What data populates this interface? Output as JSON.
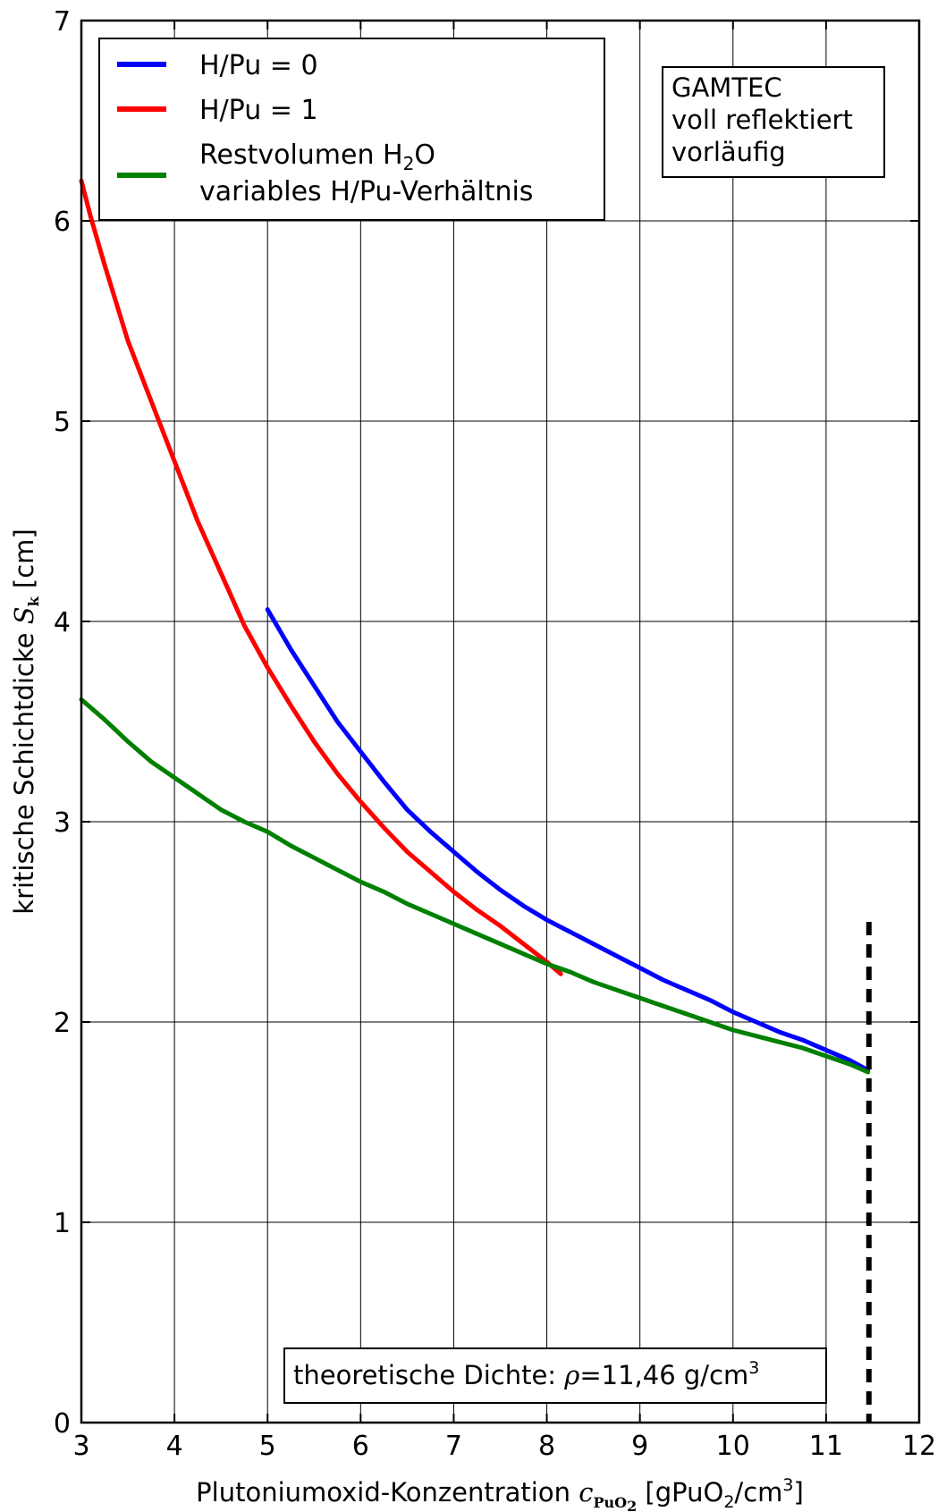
{
  "chart_data": {
    "type": "line",
    "xlim": [
      3,
      12
    ],
    "ylim": [
      0,
      7
    ],
    "x_ticks": [
      "3",
      "4",
      "5",
      "6",
      "7",
      "8",
      "9",
      "10",
      "11",
      "12"
    ],
    "y_ticks": [
      "0",
      "1",
      "2",
      "3",
      "4",
      "5",
      "6",
      "7"
    ],
    "grid": true,
    "xlabel": {
      "prefix": "Plutoniumoxid-Konzentration ",
      "symbol": "c",
      "symbol_sub": "PuO",
      "symbol_sub2": "2",
      "unit_open": " [gPuO",
      "unit_sub": "2",
      "unit_mid": "/cm",
      "unit_sup": "3",
      "unit_close": "]"
    },
    "ylabel": {
      "prefix": "kritische Schichtdicke ",
      "symbol": "S",
      "symbol_sub": "k",
      "unit": " [cm]"
    },
    "legend_position": "top-left",
    "series": [
      {
        "name": "H/Pu = 0",
        "color": "#0000ff",
        "x": [
          5.0,
          5.25,
          5.5,
          5.75,
          6.0,
          6.25,
          6.5,
          6.75,
          7.0,
          7.25,
          7.5,
          7.75,
          8.0,
          8.25,
          8.5,
          8.75,
          9.0,
          9.25,
          9.5,
          9.75,
          10.0,
          10.25,
          10.5,
          10.75,
          11.0,
          11.25,
          11.45
        ],
        "y": [
          4.06,
          3.86,
          3.68,
          3.5,
          3.35,
          3.2,
          3.06,
          2.95,
          2.85,
          2.75,
          2.66,
          2.58,
          2.51,
          2.45,
          2.39,
          2.33,
          2.27,
          2.21,
          2.16,
          2.11,
          2.05,
          2.0,
          1.95,
          1.91,
          1.86,
          1.81,
          1.76
        ]
      },
      {
        "name": "H/Pu = 1",
        "color": "#ff0000",
        "x": [
          3.0,
          3.1,
          3.25,
          3.5,
          3.75,
          4.0,
          4.25,
          4.5,
          4.75,
          5.0,
          5.25,
          5.5,
          5.75,
          6.0,
          6.25,
          6.5,
          6.75,
          7.0,
          7.25,
          7.5,
          7.75,
          8.0,
          8.15
        ],
        "y": [
          6.2,
          6.02,
          5.78,
          5.4,
          5.1,
          4.8,
          4.5,
          4.24,
          3.98,
          3.77,
          3.58,
          3.4,
          3.24,
          3.1,
          2.97,
          2.85,
          2.75,
          2.65,
          2.56,
          2.48,
          2.39,
          2.3,
          2.24
        ]
      },
      {
        "name_line1": "Restvolumen H",
        "name_sub": "2",
        "name_tail": "O",
        "name_line2": "variables H/Pu-Verhältnis",
        "color": "#008000",
        "x": [
          3.0,
          3.25,
          3.5,
          3.75,
          4.0,
          4.25,
          4.5,
          4.75,
          5.0,
          5.25,
          5.5,
          5.75,
          6.0,
          6.25,
          6.5,
          6.75,
          7.0,
          7.25,
          7.5,
          7.75,
          8.0,
          8.25,
          8.5,
          8.75,
          9.0,
          9.25,
          9.5,
          9.75,
          10.0,
          10.25,
          10.5,
          10.75,
          11.0,
          11.25,
          11.45
        ],
        "y": [
          3.61,
          3.51,
          3.4,
          3.3,
          3.22,
          3.14,
          3.06,
          3.0,
          2.95,
          2.88,
          2.82,
          2.76,
          2.7,
          2.65,
          2.59,
          2.54,
          2.49,
          2.44,
          2.39,
          2.34,
          2.29,
          2.25,
          2.2,
          2.16,
          2.12,
          2.08,
          2.04,
          2.0,
          1.96,
          1.93,
          1.9,
          1.87,
          1.83,
          1.79,
          1.75
        ]
      }
    ],
    "vline": {
      "x": 11.46,
      "y_from": 0,
      "y_to": 2.5,
      "color": "#000000",
      "style": "dashed"
    },
    "annotations": {
      "box_top_lines": [
        "GAMTEC",
        "voll reflektiert",
        "vorläufig"
      ],
      "density_prefix": "theoretische Dichte: ",
      "density_symbol": "ρ",
      "density_value": "=11,46 g/cm",
      "density_sup": "3"
    }
  }
}
